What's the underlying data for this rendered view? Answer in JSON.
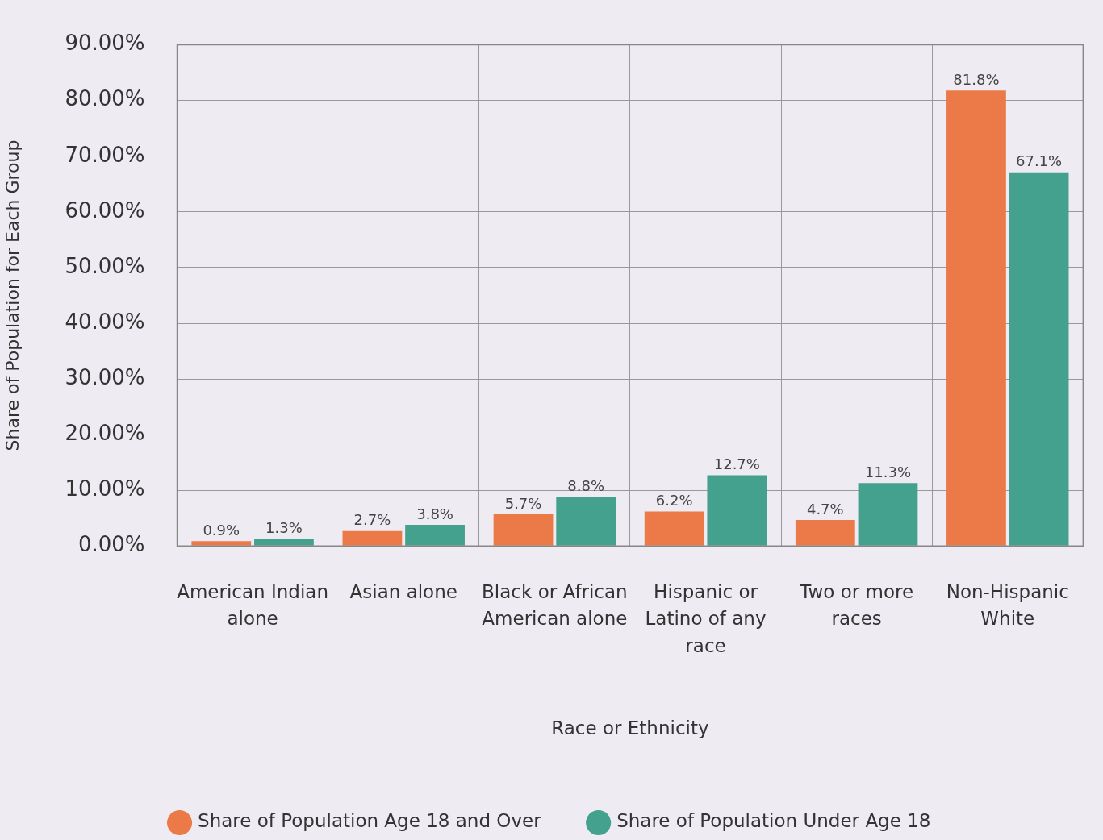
{
  "chart_data": {
    "type": "bar",
    "xlabel": "Race or Ethnicity",
    "ylabel": "Share of Population for Each Group",
    "categories": [
      "American Indian alone",
      "Asian alone",
      "Black or African American alone",
      "Hispanic or Latino of any race",
      "Two or more races",
      "Non-Hispanic White"
    ],
    "series": [
      {
        "name": "Share of Population Age 18 and Over",
        "color": "#eb7a48",
        "values": [
          0.9,
          2.7,
          5.7,
          6.2,
          4.7,
          81.8
        ],
        "value_labels": [
          "0.9%",
          "2.7%",
          "5.7%",
          "6.2%",
          "4.7%",
          "81.8%"
        ]
      },
      {
        "name": "Share of Population Under Age 18",
        "color": "#43a18d",
        "values": [
          1.3,
          3.8,
          8.8,
          12.7,
          11.3,
          67.1
        ],
        "value_labels": [
          "1.3%",
          "3.8%",
          "8.8%",
          "12.7%",
          "11.3%",
          "67.1%"
        ]
      }
    ],
    "ylim": [
      0,
      90
    ],
    "yticks": [
      {
        "value": 0,
        "label": "0.00%"
      },
      {
        "value": 10,
        "label": "10.00%"
      },
      {
        "value": 20,
        "label": "20.00%"
      },
      {
        "value": 30,
        "label": "30.00%"
      },
      {
        "value": 40,
        "label": "40.00%"
      },
      {
        "value": 50,
        "label": "50.00%"
      },
      {
        "value": 60,
        "label": "60.00%"
      },
      {
        "value": 70,
        "label": "70.00%"
      },
      {
        "value": 80,
        "label": "80.00%"
      },
      {
        "value": 90,
        "label": "90.00%"
      }
    ],
    "grid": true,
    "legend": "bottom"
  }
}
